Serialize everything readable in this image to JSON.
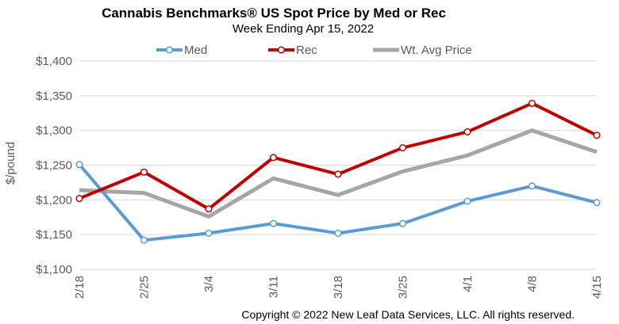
{
  "chart_data": {
    "type": "line",
    "title": "Cannabis Benchmarks® US Spot Price by Med or Rec",
    "subtitle": "Week Ending Apr 15, 2022",
    "ylabel": "$/pound",
    "xlabel": "",
    "categories": [
      "2/18",
      "2/25",
      "3/4",
      "3/11",
      "3/18",
      "3/25",
      "4/1",
      "4/8",
      "4/15"
    ],
    "ylim": [
      1100,
      1400
    ],
    "yticks": [
      1100,
      1150,
      1200,
      1250,
      1300,
      1350,
      1400
    ],
    "ytick_labels": [
      "$1,100",
      "$1,150",
      "$1,200",
      "$1,250",
      "$1,300",
      "$1,350",
      "$1,400"
    ],
    "grid": true,
    "legend": "top",
    "series": [
      {
        "name": "Med",
        "color": "#5b9bd5",
        "markers": true,
        "values": [
          1251,
          1142,
          1152,
          1166,
          1152,
          1166,
          1198,
          1220,
          1196
        ]
      },
      {
        "name": "Rec",
        "color": "#c00000",
        "markers": true,
        "values": [
          1202,
          1240,
          1187,
          1261,
          1237,
          1275,
          1298,
          1339,
          1293
        ]
      },
      {
        "name": "Wt. Avg Price",
        "color": "#a6a6a6",
        "markers": false,
        "values": [
          1214,
          1210,
          1176,
          1231,
          1207,
          1241,
          1264,
          1300,
          1269
        ]
      }
    ],
    "annotation": "Copyright © 2022 New Leaf Data Services, LLC. All rights reserved."
  }
}
